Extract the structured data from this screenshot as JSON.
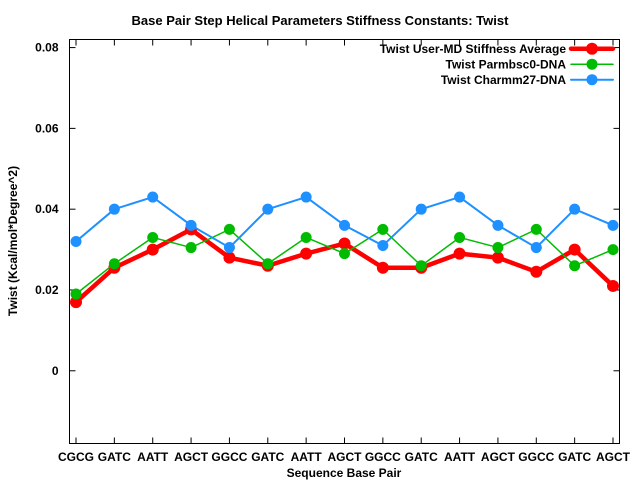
{
  "title": "Base Pair Step Helical Parameters Stiffness Constants: Twist",
  "chart_data": {
    "type": "line",
    "title": "Base Pair Step Helical Parameters Stiffness Constants: Twist",
    "xlabel": "Sequence Base Pair",
    "ylabel": "Twist (Kcal/mol*Degree^2)",
    "categories": [
      "CGCG",
      "GATC",
      "AATT",
      "AGCT",
      "GGCC",
      "GATC",
      "AATT",
      "AGCT",
      "GGCC",
      "GATC",
      "AATT",
      "AGCT",
      "GGCC",
      "GATC",
      "AGCT"
    ],
    "ytick_values": [
      0,
      0.02,
      0.04,
      0.06,
      0.08
    ],
    "ytick_labels": [
      "0",
      "0.02",
      "0.04",
      "0.06",
      "0.08"
    ],
    "ylim": [
      -0.018,
      0.082
    ],
    "grid": false,
    "legend_position": "top-right-inside",
    "background_color": "#ffffff",
    "axis_color": "#000000",
    "series": [
      {
        "name": "Twist User-MD Stiffness Average",
        "color": "#ff0000",
        "line_width": 4.5,
        "marker": "filled-circle",
        "marker_radius": 6,
        "values": [
          0.017,
          0.0255,
          0.03,
          0.035,
          0.028,
          0.026,
          0.029,
          0.0315,
          0.0255,
          0.0255,
          0.029,
          0.028,
          0.0245,
          0.03,
          0.021
        ]
      },
      {
        "name": "Twist Parmbsc0-DNA",
        "color": "#00bb00",
        "line_width": 1.5,
        "marker": "filled-circle",
        "marker_radius": 5.5,
        "values": [
          0.019,
          0.0265,
          0.033,
          0.0305,
          0.035,
          0.0265,
          0.033,
          0.029,
          0.035,
          0.026,
          0.033,
          0.0305,
          0.035,
          0.026,
          0.03
        ]
      },
      {
        "name": "Twist Charmm27-DNA",
        "color": "#1e90ff",
        "line_width": 2,
        "marker": "filled-circle",
        "marker_radius": 5.5,
        "values": [
          0.032,
          0.04,
          0.043,
          0.036,
          0.0305,
          0.04,
          0.043,
          0.036,
          0.031,
          0.04,
          0.043,
          0.036,
          0.0305,
          0.04,
          0.036
        ]
      }
    ]
  }
}
